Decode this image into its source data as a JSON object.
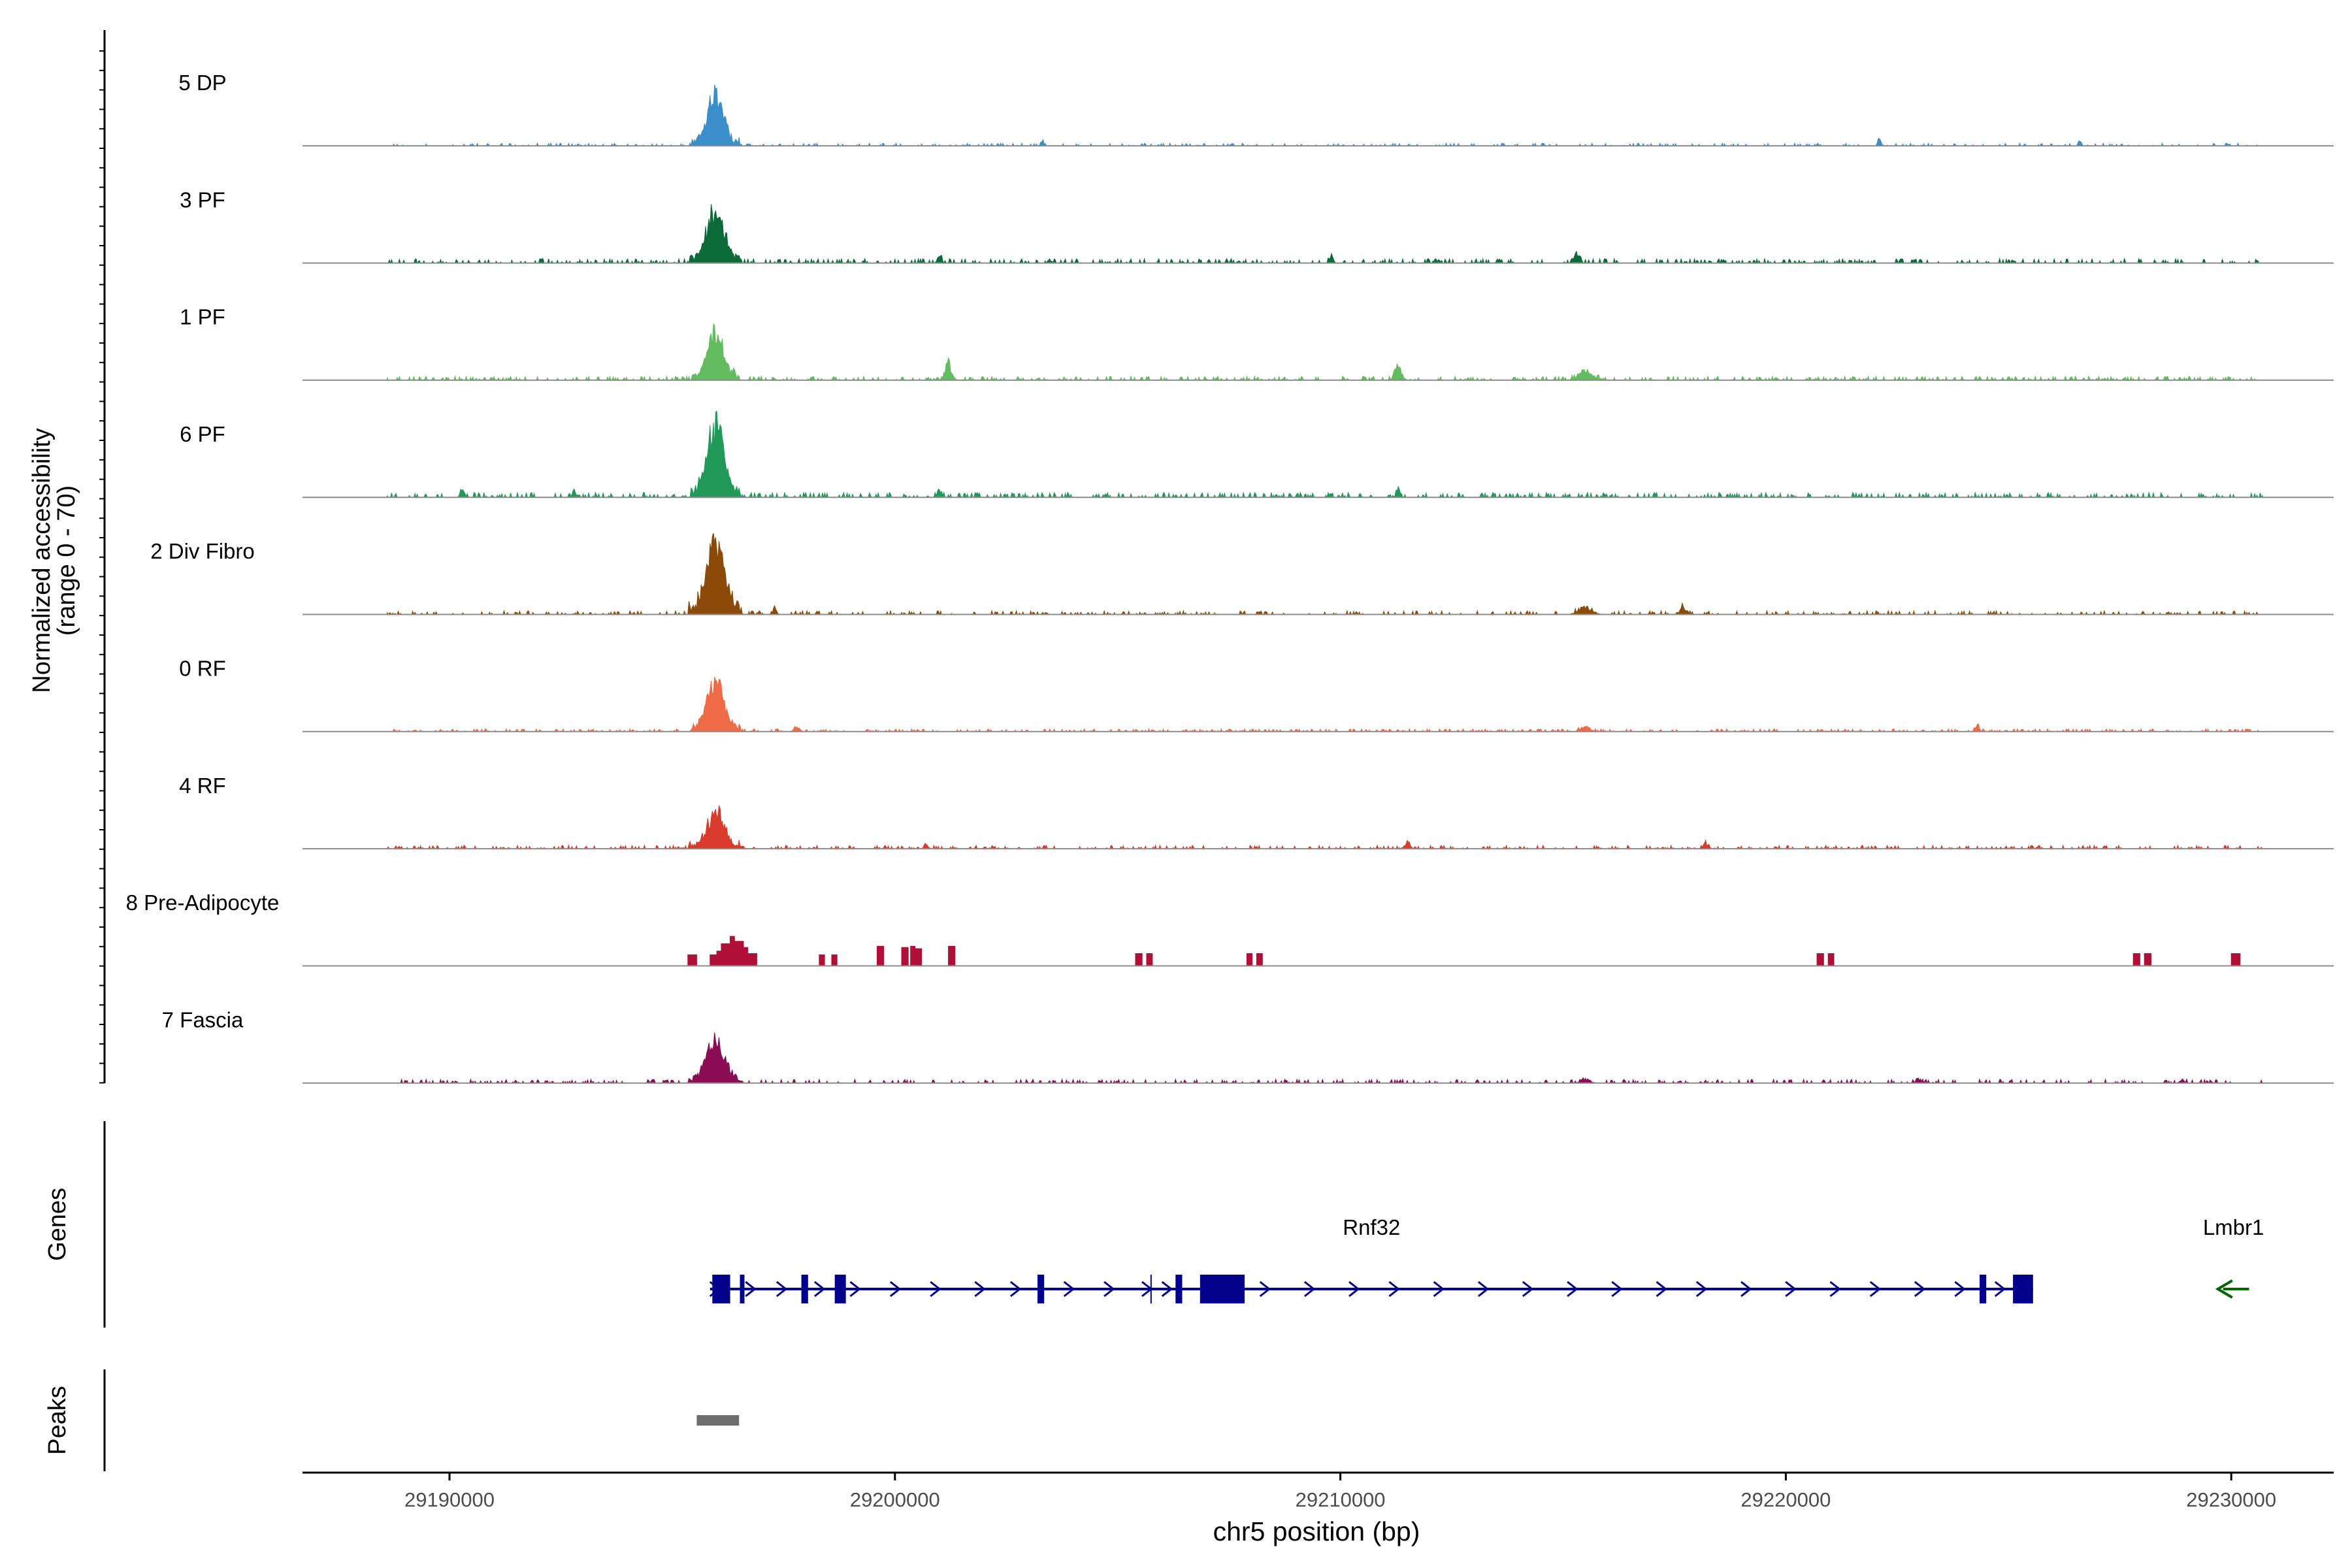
{
  "chart_data": {
    "type": "area",
    "title": "",
    "xlabel": "chr5 position (bp)",
    "ylabel": "Normalized accessibility",
    "ylabel_range": "(range 0 - 70)",
    "y_range": [
      0,
      70
    ],
    "xlim": [
      29186700,
      29232300
    ],
    "x_ticks": [
      29190000,
      29200000,
      29210000,
      29220000,
      29230000
    ],
    "x_tick_labels": [
      "29190000",
      "29200000",
      "29210000",
      "29220000",
      "29230000"
    ],
    "region_start": 29188600,
    "region_end": 29230700,
    "colors": {
      "axis": "#000000",
      "baseline": "#8c8c8c",
      "gene": "#00008b",
      "gene_minus": "#006400",
      "peak": "#6e6e6e"
    },
    "tracks": [
      {
        "name": "5 DP",
        "color": "#3a8fc9",
        "peak_height": 48,
        "peak_width": 380,
        "noise": 0.55,
        "density": 0.55,
        "bumps": [
          [
            29222100,
            10,
            60
          ],
          [
            29203300,
            6,
            60
          ],
          [
            29226600,
            6,
            60
          ]
        ]
      },
      {
        "name": "3 PF",
        "color": "#0b6b38",
        "peak_height": 50,
        "peak_width": 420,
        "noise": 0.9,
        "density": 0.75,
        "bumps": [
          [
            29215300,
            10,
            120
          ],
          [
            29201000,
            7,
            90
          ],
          [
            29209800,
            7,
            80
          ]
        ]
      },
      {
        "name": "1 PF",
        "color": "#63bd5f",
        "peak_height": 45,
        "peak_width": 380,
        "noise": 0.8,
        "density": 0.75,
        "bumps": [
          [
            29201200,
            18,
            140
          ],
          [
            29211300,
            15,
            140
          ],
          [
            29215500,
            10,
            300
          ],
          [
            29196000,
            6,
            90
          ]
        ]
      },
      {
        "name": "6 PF",
        "color": "#209a58",
        "peak_height": 70,
        "peak_width": 400,
        "noise": 1.0,
        "density": 0.8,
        "bumps": [
          [
            29201000,
            9,
            90
          ],
          [
            29211300,
            8,
            90
          ],
          [
            29190300,
            7,
            90
          ],
          [
            29192800,
            7,
            90
          ]
        ]
      },
      {
        "name": "2 Div Fibro",
        "color": "#8b4a08",
        "peak_height": 70,
        "peak_width": 430,
        "noise": 0.75,
        "density": 0.6,
        "bumps": [
          [
            29215500,
            7,
            300
          ],
          [
            29217700,
            7,
            150
          ],
          [
            29197300,
            5,
            90
          ]
        ]
      },
      {
        "name": "0 RF",
        "color": "#ee6b45",
        "peak_height": 48,
        "peak_width": 400,
        "noise": 0.55,
        "density": 0.8,
        "bumps": [
          [
            29197800,
            5,
            120
          ],
          [
            29215500,
            5,
            200
          ],
          [
            29224300,
            5,
            90
          ]
        ]
      },
      {
        "name": "4 RF",
        "color": "#d93a2b",
        "peak_height": 33,
        "peak_width": 430,
        "noise": 0.7,
        "density": 0.65,
        "bumps": [
          [
            29211500,
            7,
            120
          ],
          [
            29218200,
            5,
            120
          ],
          [
            29200700,
            5,
            90
          ]
        ]
      },
      {
        "name": "8 Pre-Adipocyte",
        "color": "#b01038",
        "peak_height": 0,
        "peak_width": 0,
        "noise": 0,
        "density": 0,
        "blocks": [
          [
            29195350,
            29195550,
            9
          ],
          [
            29195850,
            29196000,
            9
          ],
          [
            29196000,
            29196100,
            12
          ],
          [
            29196100,
            29196300,
            18
          ],
          [
            29196300,
            29196400,
            24
          ],
          [
            29196400,
            29196600,
            20
          ],
          [
            29196600,
            29196700,
            15
          ],
          [
            29196700,
            29196900,
            10
          ],
          [
            29198300,
            29198420,
            9
          ],
          [
            29198580,
            29198700,
            9
          ],
          [
            29199600,
            29199750,
            16
          ],
          [
            29200150,
            29200300,
            15
          ],
          [
            29200350,
            29200450,
            16
          ],
          [
            29200450,
            29200600,
            14
          ],
          [
            29201200,
            29201350,
            16
          ],
          [
            29205400,
            29205550,
            10
          ],
          [
            29205650,
            29205780,
            10
          ],
          [
            29207900,
            29208020,
            10
          ],
          [
            29208120,
            29208250,
            10
          ],
          [
            29220700,
            29220850,
            10
          ],
          [
            29220950,
            29221080,
            10
          ],
          [
            29227800,
            29227950,
            10
          ],
          [
            29228050,
            29228200,
            10
          ],
          [
            29230000,
            29230200,
            10
          ]
        ]
      },
      {
        "name": "7 Fascia",
        "color": "#8a0c55",
        "peak_height": 40,
        "peak_width": 440,
        "noise": 0.75,
        "density": 0.65,
        "bumps": [
          [
            29215500,
            4,
            200
          ],
          [
            29223000,
            4,
            90
          ],
          [
            29228900,
            4,
            90
          ]
        ]
      }
    ],
    "gene_track_label": "Genes",
    "genes": [
      {
        "name": "Rnf32",
        "start": 29195850,
        "end": 29225550,
        "strand": "+",
        "exons": [
          [
            29195900,
            29196300,
            "thick"
          ],
          [
            29196520,
            29196570,
            "thin"
          ],
          [
            29197900,
            29198050,
            "thin"
          ],
          [
            29198650,
            29198900,
            "thick"
          ],
          [
            29203200,
            29203350,
            "thin"
          ],
          [
            29205750,
            29205800,
            "tick"
          ],
          [
            29206300,
            29206450,
            "thin"
          ],
          [
            29206850,
            29207850,
            "thick"
          ],
          [
            29224350,
            29224500,
            "thin"
          ],
          [
            29225100,
            29225550,
            "thick"
          ]
        ],
        "arrows": [
          29195950,
          29196750,
          29197450,
          29198300,
          29199100,
          29200000,
          29200900,
          29201900,
          29202700,
          29203900,
          29204800,
          29205650,
          29206100,
          29208300,
          29209300,
          29210300,
          29211200,
          29212200,
          29213200,
          29214200,
          29215200,
          29216200,
          29217200,
          29218100,
          29219100,
          29220100,
          29221100,
          29222000,
          29223000,
          29223900,
          29224800
        ]
      },
      {
        "name": "Lmbr1",
        "start": 29229700,
        "end": 29230400,
        "strand": "-"
      }
    ],
    "peak_track_label": "Peaks",
    "peaks": [
      [
        29195550,
        29196500
      ]
    ]
  }
}
